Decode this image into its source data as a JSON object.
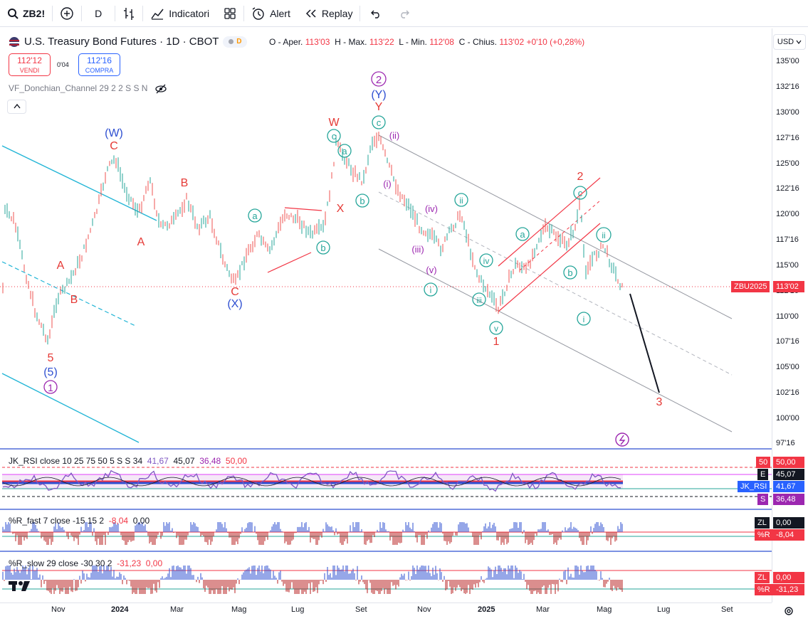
{
  "toolbar": {
    "symbol": "ZB2!",
    "interval": "D",
    "indicators_label": "Indicatori",
    "alert_label": "Alert",
    "replay_label": "Replay"
  },
  "legend": {
    "title": "U.S. Treasury Bond Futures · 1D · CBOT",
    "badge": "D",
    "open_label": "O - Aper.",
    "open": "113'03",
    "high_label": "H - Max.",
    "high": "113'22",
    "low_label": "L - Min.",
    "low": "112'08",
    "close_label": "C - Chius.",
    "close": "113'02",
    "change": "+0'10 (+0,28%)"
  },
  "trade": {
    "sell_price": "112'12",
    "sell_label": "VENDI",
    "spread": "0'04",
    "buy_price": "112'16",
    "buy_label": "COMPRA"
  },
  "overlay_indicator": "VF_Donchian_Channel 29 2 2 S S N",
  "price_axis": {
    "currency": "USD",
    "ticks": [
      "135'00",
      "132'16",
      "130'00",
      "127'16",
      "125'00",
      "122'16",
      "120'00",
      "117'16",
      "115'00",
      "112'16",
      "110'00",
      "107'16",
      "105'00",
      "102'16",
      "100'00",
      "97'16"
    ],
    "last_symbol": "ZBU2025",
    "last_price": "113'02"
  },
  "time_axis": [
    "Nov",
    "2024",
    "Mar",
    "Mag",
    "Lug",
    "Set",
    "Nov",
    "2025",
    "Mar",
    "Mag",
    "Lug",
    "Set"
  ],
  "waves": {
    "w5_red": "5",
    "w5_blue": "(5)",
    "w1_circ": "1",
    "wW_blue": "(W)",
    "wC1": "C",
    "wA1": "A",
    "wB1": "B",
    "wA0": "A",
    "wB0": "B",
    "wC2": "C",
    "wX_blue": "(X)",
    "wa1": "a",
    "wb1": "b",
    "wW_red": "W",
    "wX_red": "X",
    "wc_top": "c",
    "wa_top": "a",
    "wb_top": "b",
    "w2_circ": "2",
    "wY_blue": "(Y)",
    "wY_red": "Y",
    "wc_peak": "c",
    "wii_p": "(ii)",
    "wi_p": "(i)",
    "wiv_p": "(iv)",
    "wiii_p": "(iii)",
    "wv_p": "(v)",
    "wii_g": "ii",
    "wiv_g": "iv",
    "wi_g": "i",
    "wiii_g": "iii",
    "wv_g": "v",
    "w1_red": "1",
    "wa2": "a",
    "w2_red": "2",
    "wc2": "c",
    "wb2": "b",
    "wii2": "ii",
    "wi2": "i",
    "w3_red": "3"
  },
  "rsi": {
    "label": "JK_RSI close 10 25 75 50 5 S S 34",
    "v1": "41,67",
    "v2": "45,07",
    "v3": "36,48",
    "v4": "50,00",
    "tag50": "50",
    "tag50v": "50,00",
    "tagE": "E",
    "tagEv": "45,07",
    "tagName": "JK_RSI",
    "tagNamev": "41,67",
    "tagS": "S",
    "tagSv": "36,48"
  },
  "wr_fast": {
    "label": "%R_fast 7 close -15 15 2",
    "v1": "-8,04",
    "v2": "0,00",
    "tagZL": "ZL",
    "tagZLv": "0,00",
    "tagR": "%R",
    "tagRv": "-8,04"
  },
  "wr_slow": {
    "label": "%R_slow 29 close -30 30 2",
    "v1": "-31,23",
    "v2": "0,00",
    "tagZL": "ZL",
    "tagZLv": "0,00",
    "tagR": "%R",
    "tagRv": "-31,23"
  },
  "colors": {
    "up": "#26a69a",
    "down": "#ef5350",
    "red_wave": "#e53935",
    "blue_wave": "#2e4fd1",
    "purple_wave": "#9c27b0",
    "green_wave": "#26a69a",
    "channel_cyan": "#22b5d6"
  }
}
